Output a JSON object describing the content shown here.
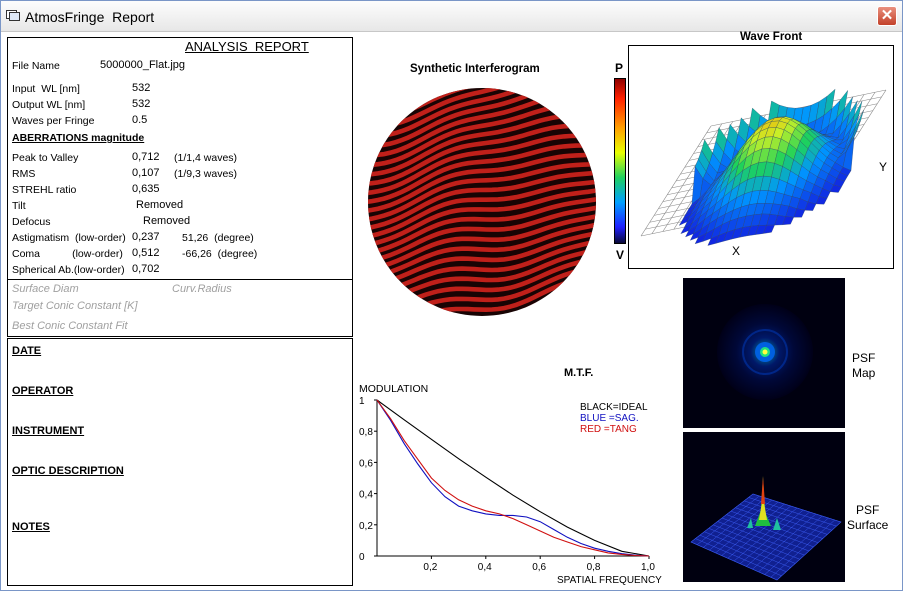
{
  "window": {
    "title": "AtmosFringe  Report",
    "close_label": "✕",
    "app_icon": "report-window-icon"
  },
  "report": {
    "heading": "ANALYSIS  REPORT",
    "file_name_label": "File Name",
    "file_name": "5000000_Flat.jpg",
    "input_wl_label": "Input  WL [nm]",
    "input_wl": "532",
    "output_wl_label": "Output WL [nm]",
    "output_wl": "532",
    "waves_per_fringe_label": "Waves per Fringe",
    "waves_per_fringe": "0.5",
    "aberrations_heading": "ABERRATIONS magnitude",
    "rows": [
      {
        "label": "Peak to Valley",
        "value": "0,712",
        "extra": "(1/1,4 waves)"
      },
      {
        "label": "RMS",
        "value": "0,107",
        "extra": "(1/9,3 waves)"
      },
      {
        "label": "STREHL ratio",
        "value": "0,635",
        "extra": ""
      },
      {
        "label": "Tilt",
        "value": "Removed",
        "extra": ""
      },
      {
        "label": "Defocus",
        "value": "Removed",
        "extra": ""
      },
      {
        "label": "Astigmatism  (low-order)",
        "value": "0,237",
        "extra": "51,26  (degree)"
      },
      {
        "label": "Coma           (low-order)",
        "value": "0,512",
        "extra": "-66,26  (degree)"
      },
      {
        "label": "Spherical Ab.(low-order)",
        "value": "0,702",
        "extra": ""
      }
    ],
    "surface_diam": "Surface Diam",
    "curv_radius": "Curv.Radius",
    "target_conic": "Target Conic Constant [K]",
    "best_conic": "Best Conic Constant Fit"
  },
  "info": {
    "date": "DATE",
    "operator": "OPERATOR",
    "instrument": "INSTRUMENT",
    "optic_description": "OPTIC DESCRIPTION",
    "notes": "NOTES"
  },
  "interferogram": {
    "title": "Synthetic Interferogram",
    "fringe_color": "#c0201a",
    "dark_color": "#180404"
  },
  "wavefront": {
    "title": "Wave Front",
    "scale_top": "P",
    "scale_bottom": "V",
    "x_label": "X",
    "y_label": "Y"
  },
  "psf": {
    "map_label": "PSF\nMap",
    "surface_label": "PSF\nSurface"
  },
  "chart_data": {
    "type": "line",
    "title": "M.T.F.",
    "ylabel": "MODULATION",
    "xlabel": "SPATIAL FREQUENCY",
    "xlim": [
      0,
      1
    ],
    "ylim": [
      0,
      1
    ],
    "x_ticks": [
      "0,2",
      "0,4",
      "0,6",
      "0,8",
      "1,0"
    ],
    "y_ticks": [
      "0",
      "0,2",
      "0,4",
      "0,6",
      "0,8",
      "1"
    ],
    "legend": [
      "BLACK=IDEAL",
      "BLUE  =SAG.",
      "RED    =TANG"
    ],
    "series": [
      {
        "name": "IDEAL",
        "color": "#000000",
        "x": [
          0,
          0.1,
          0.2,
          0.3,
          0.4,
          0.5,
          0.6,
          0.7,
          0.8,
          0.9,
          1.0
        ],
        "y": [
          1.0,
          0.873,
          0.748,
          0.624,
          0.505,
          0.39,
          0.284,
          0.185,
          0.1,
          0.03,
          0.0
        ]
      },
      {
        "name": "SAG.",
        "color": "#1010c0",
        "x": [
          0,
          0.05,
          0.1,
          0.15,
          0.2,
          0.25,
          0.3,
          0.35,
          0.4,
          0.45,
          0.5,
          0.55,
          0.6,
          0.65,
          0.7,
          0.75,
          0.8,
          0.85,
          0.9,
          0.95,
          1.0
        ],
        "y": [
          1.0,
          0.87,
          0.72,
          0.59,
          0.47,
          0.38,
          0.32,
          0.29,
          0.27,
          0.26,
          0.26,
          0.25,
          0.22,
          0.17,
          0.12,
          0.08,
          0.05,
          0.03,
          0.015,
          0.005,
          0.0
        ]
      },
      {
        "name": "TANG",
        "color": "#d01010",
        "x": [
          0,
          0.05,
          0.1,
          0.15,
          0.2,
          0.25,
          0.3,
          0.35,
          0.4,
          0.45,
          0.5,
          0.55,
          0.6,
          0.65,
          0.7,
          0.75,
          0.8,
          0.85,
          0.9,
          0.95,
          1.0
        ],
        "y": [
          1.0,
          0.88,
          0.74,
          0.62,
          0.5,
          0.42,
          0.36,
          0.32,
          0.29,
          0.27,
          0.24,
          0.2,
          0.16,
          0.12,
          0.09,
          0.06,
          0.04,
          0.02,
          0.01,
          0.003,
          0.0
        ]
      }
    ]
  }
}
